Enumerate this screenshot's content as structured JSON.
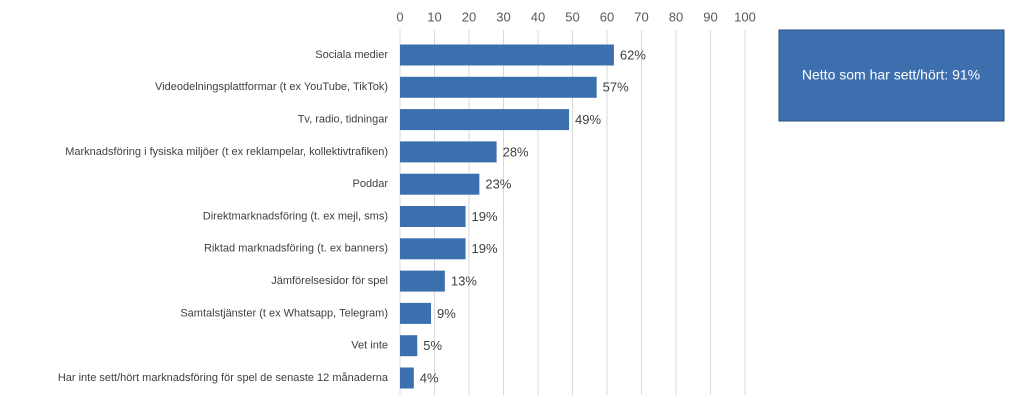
{
  "chart_data": {
    "type": "bar",
    "orientation": "horizontal",
    "categories": [
      "Sociala medier",
      "Videodelningsplattformar (t ex YouTube, TikTok)",
      "Tv, radio, tidningar",
      "Marknadsföring i fysiska miljöer (t ex reklampelar, kollektivtrafiken)",
      "Poddar",
      "Direktmarknadsföring (t. ex mejl, sms)",
      "Riktad marknadsföring (t. ex banners)",
      "Jämförelsesidor för spel",
      "Samtalstjänster (t ex Whatsapp, Telegram)",
      "Vet inte",
      "Har inte sett/hört marknadsföring för spel de senaste 12 månaderna"
    ],
    "values": [
      62,
      57,
      49,
      28,
      23,
      19,
      19,
      13,
      9,
      5,
      4
    ],
    "value_labels": [
      "62%",
      "57%",
      "49%",
      "28%",
      "23%",
      "19%",
      "19%",
      "13%",
      "9%",
      "5%",
      "4%"
    ],
    "color": "#3b6fad",
    "xlim": [
      0,
      100
    ],
    "xticks": [
      0,
      10,
      20,
      30,
      40,
      50,
      60,
      70,
      80,
      90,
      100
    ],
    "grid": true,
    "annotation": "Netto som har sett/hört: 91%"
  }
}
